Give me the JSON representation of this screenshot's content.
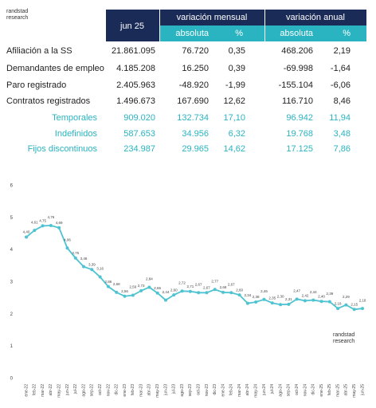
{
  "logo": [
    "randstad",
    "research"
  ],
  "table": {
    "header": {
      "first": "jun 25",
      "groups": [
        "variación mensual",
        "variación anual"
      ],
      "sub": [
        "absoluta",
        "%",
        "absoluta",
        "%"
      ]
    },
    "rows": [
      [
        "Afiliación a la SS",
        "21.861.095",
        "76.720",
        "0,35",
        "468.206",
        "2,19"
      ],
      [
        "Demandantes de empleo",
        "4.185.208",
        "16.250",
        "0,39",
        "-69.998",
        "-1,64"
      ],
      [
        "Paro registrado",
        "2.405.963",
        "-48.920",
        "-1,99",
        "-155.104",
        "-6,06"
      ],
      [
        "Contratos registrados",
        "1.496.673",
        "167.690",
        "12,62",
        "116.710",
        "8,46"
      ],
      [
        "Temporales",
        "909.020",
        "132.734",
        "17,10",
        "96.942",
        "11,94"
      ],
      [
        "Indefinidos",
        "587.653",
        "34.956",
        "6,32",
        "19.768",
        "3,48"
      ],
      [
        "Fijos discontinuos",
        "234.987",
        "29.965",
        "14,62",
        "17.125",
        "7,86"
      ]
    ]
  },
  "chart_data": {
    "type": "line",
    "color": "#4fc3d1",
    "categories": [
      "ene-22",
      "feb-22",
      "mar-22",
      "abr-22",
      "may-22",
      "jun-22",
      "jul-22",
      "ago-22",
      "sep-22",
      "oct-22",
      "nov-22",
      "dic-22",
      "ene-23",
      "feb-23",
      "mar-23",
      "abr-23",
      "may-23",
      "jun-23",
      "jul-23",
      "ago-23",
      "sep-23",
      "oct-23",
      "nov-23",
      "dic-23",
      "ene-24",
      "feb-24",
      "mar-24",
      "abr-24",
      "may-24",
      "jun-24",
      "jul-24",
      "ago-24",
      "sep-24",
      "oct-24",
      "nov-24",
      "dic-24",
      "ene-25",
      "feb-25",
      "mar-25",
      "abr-25",
      "may-25",
      "jun-25"
    ],
    "values": [
      4.4,
      4.61,
      4.75,
      4.76,
      4.69,
      4.06,
      3.75,
      3.48,
      3.39,
      3.16,
      2.86,
      2.68,
      2.56,
      2.59,
      2.73,
      2.84,
      2.66,
      2.44,
      2.6,
      2.72,
      2.71,
      2.67,
      2.67,
      2.77,
      2.68,
      2.67,
      2.6,
      2.34,
      2.38,
      2.46,
      2.35,
      2.3,
      2.31,
      2.47,
      2.42,
      2.44,
      2.4,
      2.39,
      2.18,
      2.29,
      2.15,
      2.18
    ],
    "value_labels": [
      "4,40",
      "4,61",
      "4,75",
      "4,76",
      "4,69",
      "4,06",
      "3,75",
      "3,48",
      "3,39",
      "3,16",
      "2,86",
      "2,68",
      "2,56",
      "2,59",
      "2,73",
      "2,84",
      "2,66",
      "2,44",
      "2,60",
      "2,72",
      "2,71",
      "2,67",
      "2,67",
      "2,77",
      "2,68",
      "2,67",
      "2,60",
      "2,34",
      "2,38",
      "2,46",
      "2,35",
      "2,30",
      "2,31",
      "2,47",
      "2,42",
      "2,44",
      "2,40",
      "2,39",
      "2,18",
      "2,29",
      "2,15",
      "2,18"
    ],
    "ylim": [
      0,
      6
    ],
    "yticks": [
      0,
      1,
      2,
      3,
      4,
      5,
      6
    ]
  },
  "chart_logo": [
    "randstad",
    "research"
  ]
}
